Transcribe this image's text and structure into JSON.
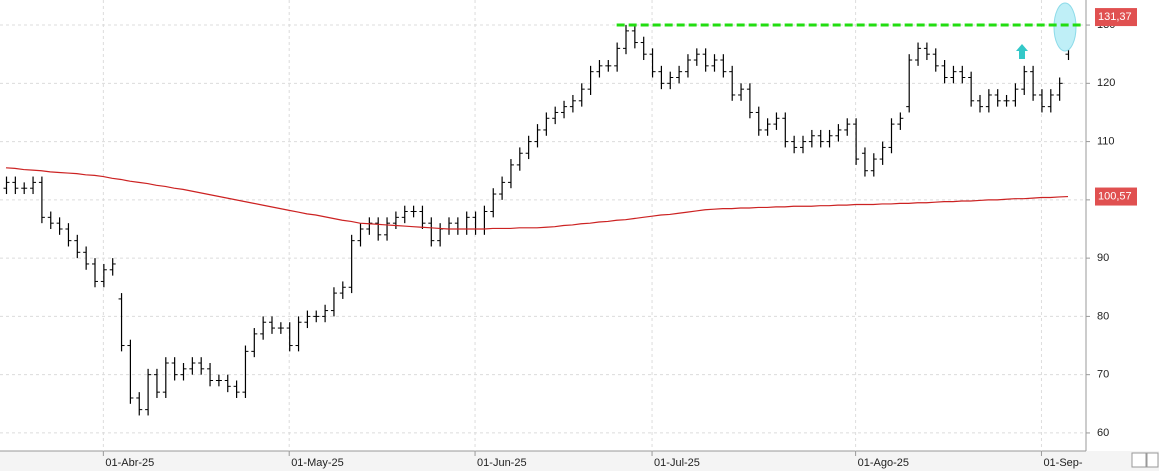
{
  "chart_data": {
    "type": "ohlc",
    "categories": [
      null,
      null,
      null,
      null,
      null,
      null,
      null,
      null,
      null,
      null,
      null,
      "01-Abr-25",
      null,
      null,
      null,
      null,
      null,
      null,
      null,
      null,
      null,
      null,
      null,
      null,
      null,
      null,
      null,
      null,
      null,
      null,
      null,
      null,
      "01-May-25",
      null,
      null,
      null,
      null,
      null,
      null,
      null,
      null,
      null,
      null,
      null,
      null,
      null,
      null,
      null,
      null,
      null,
      null,
      null,
      null,
      "01-Jun-25",
      null,
      null,
      null,
      null,
      null,
      null,
      null,
      null,
      null,
      null,
      null,
      null,
      null,
      null,
      null,
      null,
      null,
      null,
      null,
      "01-Jul-25",
      null,
      null,
      null,
      null,
      null,
      null,
      null,
      null,
      null,
      null,
      null,
      null,
      null,
      null,
      null,
      null,
      null,
      null,
      null,
      null,
      null,
      null,
      "01-Ago-25",
      null,
      null,
      null,
      null,
      null,
      null,
      null,
      null,
      null,
      null,
      null,
      null,
      null,
      null,
      null,
      null,
      null,
      null,
      null,
      null,
      "01-Sep-",
      null,
      null,
      null
    ],
    "open": [
      102,
      103,
      102,
      102,
      103,
      97,
      96,
      95,
      93,
      91,
      89,
      86,
      88,
      83,
      75,
      66,
      64,
      70,
      67,
      72,
      70,
      71,
      72,
      71,
      69,
      69,
      68,
      67,
      74,
      77,
      79,
      78,
      78,
      75,
      79,
      80,
      80,
      81,
      84,
      85,
      93,
      95,
      96,
      94,
      96,
      97,
      98,
      98,
      96,
      93,
      95,
      96,
      95,
      97,
      95,
      98,
      101,
      103,
      106,
      108,
      110,
      112,
      114,
      115,
      116,
      117,
      119,
      122,
      123,
      123,
      126,
      129,
      127,
      125,
      122,
      120,
      121,
      122,
      124,
      125,
      123,
      124,
      122,
      118,
      119,
      115,
      112,
      113,
      114,
      110,
      109,
      110,
      111,
      110,
      111,
      112,
      113,
      108,
      105,
      107,
      109,
      113,
      116,
      124,
      126,
      125,
      123,
      121,
      122,
      121,
      117,
      116,
      118,
      117,
      117,
      119,
      122,
      118,
      116,
      118,
      125
    ],
    "high": [
      104,
      104,
      103,
      104,
      104,
      98,
      97,
      96,
      94,
      92,
      90,
      89,
      90,
      84,
      76,
      67,
      71,
      71,
      73,
      73,
      72,
      73,
      73,
      72,
      70,
      70,
      69,
      75,
      78,
      80,
      80,
      79,
      79,
      80,
      81,
      81,
      82,
      85,
      86,
      94,
      96,
      97,
      97,
      97,
      98,
      99,
      99,
      99,
      97,
      96,
      97,
      97,
      98,
      98,
      99,
      102,
      104,
      107,
      109,
      111,
      113,
      115,
      116,
      117,
      118,
      120,
      123,
      124,
      124,
      127,
      130,
      130,
      128,
      126,
      123,
      122,
      123,
      125,
      126,
      126,
      125,
      125,
      123,
      120,
      120,
      116,
      114,
      115,
      115,
      111,
      111,
      112,
      112,
      112,
      113,
      114,
      114,
      109,
      108,
      110,
      114,
      115,
      125,
      127,
      127,
      126,
      124,
      123,
      123,
      122,
      118,
      119,
      119,
      118,
      120,
      123,
      123,
      119,
      119,
      121,
      132
    ],
    "low": [
      101,
      101,
      101,
      101,
      96,
      95,
      94,
      92,
      90,
      88,
      85,
      85,
      87,
      74,
      65,
      63,
      63,
      66,
      66,
      69,
      69,
      70,
      70,
      68,
      68,
      67,
      66,
      66,
      73,
      76,
      77,
      77,
      74,
      74,
      78,
      79,
      79,
      80,
      83,
      84,
      92,
      94,
      93,
      93,
      95,
      96,
      97,
      95,
      92,
      92,
      94,
      94,
      94,
      94,
      94,
      97,
      100,
      102,
      105,
      107,
      109,
      111,
      113,
      114,
      115,
      116,
      118,
      121,
      122,
      122,
      125,
      126,
      124,
      121,
      119,
      119,
      120,
      121,
      123,
      122,
      122,
      121,
      117,
      117,
      114,
      111,
      111,
      112,
      109,
      108,
      108,
      109,
      109,
      109,
      110,
      111,
      106,
      104,
      104,
      106,
      108,
      112,
      115,
      123,
      124,
      122,
      120,
      120,
      120,
      116,
      115,
      115,
      116,
      116,
      116,
      118,
      117,
      115,
      115,
      117,
      124
    ],
    "close": [
      103,
      102,
      102,
      103,
      97,
      96,
      95,
      93,
      91,
      89,
      86,
      88,
      89,
      75,
      66,
      64,
      70,
      67,
      72,
      70,
      71,
      72,
      71,
      69,
      69,
      68,
      67,
      74,
      77,
      79,
      78,
      78,
      75,
      79,
      80,
      80,
      81,
      84,
      85,
      93,
      95,
      96,
      94,
      96,
      97,
      98,
      98,
      96,
      93,
      95,
      96,
      95,
      97,
      95,
      98,
      101,
      103,
      106,
      108,
      110,
      112,
      114,
      115,
      116,
      117,
      119,
      122,
      123,
      123,
      126,
      129,
      127,
      125,
      122,
      120,
      121,
      122,
      124,
      125,
      123,
      124,
      122,
      118,
      119,
      115,
      112,
      113,
      114,
      110,
      109,
      110,
      111,
      110,
      111,
      112,
      113,
      107,
      105,
      107,
      109,
      113,
      114,
      124,
      126,
      125,
      123,
      121,
      122,
      121,
      117,
      116,
      118,
      117,
      117,
      119,
      122,
      118,
      116,
      118,
      120,
      131.37
    ],
    "close_label": "131,37",
    "bar_color": "#000000",
    "label_color": "#e05050",
    "ma": {
      "color": "#cc2222",
      "last_label": "100,57",
      "values": [
        105.5,
        105.4,
        105.2,
        105.1,
        105.0,
        104.8,
        104.7,
        104.6,
        104.5,
        104.3,
        104.2,
        104.0,
        103.7,
        103.5,
        103.2,
        103.0,
        102.8,
        102.5,
        102.3,
        102.0,
        101.8,
        101.5,
        101.2,
        100.9,
        100.6,
        100.3,
        100.0,
        99.7,
        99.4,
        99.1,
        98.8,
        98.5,
        98.2,
        97.9,
        97.6,
        97.4,
        97.1,
        96.8,
        96.5,
        96.3,
        96.0,
        95.9,
        95.8,
        95.7,
        95.6,
        95.5,
        95.4,
        95.3,
        95.2,
        95.1,
        95.0,
        95.0,
        95.0,
        95.0,
        95.0,
        95.1,
        95.1,
        95.1,
        95.2,
        95.2,
        95.2,
        95.3,
        95.4,
        95.6,
        95.7,
        95.9,
        96.0,
        96.2,
        96.3,
        96.5,
        96.6,
        96.8,
        97.0,
        97.2,
        97.4,
        97.5,
        97.7,
        97.9,
        98.1,
        98.3,
        98.4,
        98.5,
        98.5,
        98.6,
        98.6,
        98.7,
        98.7,
        98.8,
        98.8,
        98.9,
        98.9,
        98.9,
        99.0,
        99.0,
        99.1,
        99.1,
        99.2,
        99.2,
        99.2,
        99.3,
        99.3,
        99.4,
        99.4,
        99.5,
        99.5,
        99.6,
        99.7,
        99.7,
        99.8,
        99.8,
        99.9,
        100.0,
        100.0,
        100.1,
        100.2,
        100.2,
        100.3,
        100.4,
        100.4,
        100.5,
        100.57
      ]
    },
    "resistance": {
      "value": 130,
      "color": "#22dd11"
    },
    "ylim": [
      56.9,
      134.3
    ],
    "yticks": [
      60,
      70,
      80,
      90,
      100,
      110,
      120,
      130
    ],
    "grid": true
  }
}
